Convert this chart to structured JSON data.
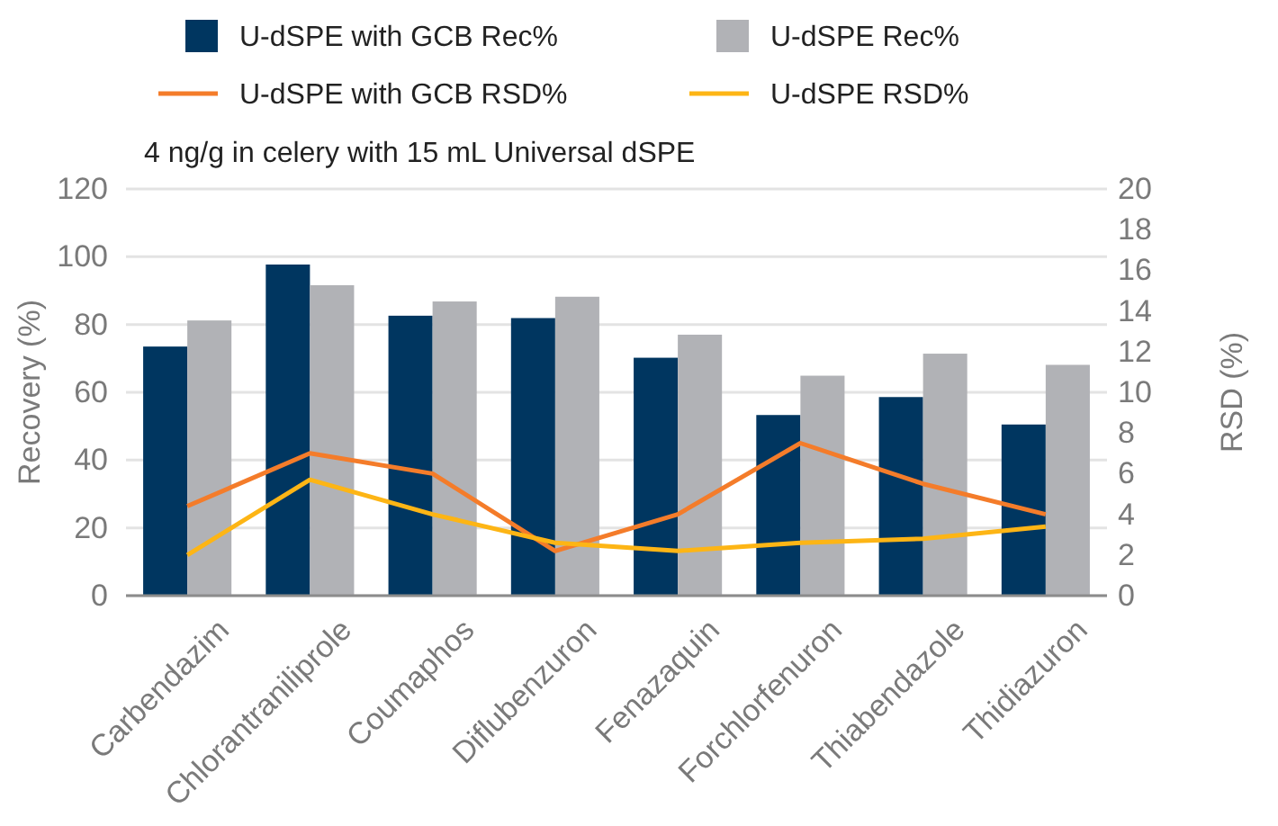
{
  "chart_data": {
    "type": "bar",
    "title": "4 ng/g in celery with 15 mL Universal dSPE",
    "ylabel": "Recovery (%)",
    "y2label": "RSD (%)",
    "categories": [
      "Carbendazim",
      "Chlorantraniliprole",
      "Coumaphos",
      "Diflubenzuron",
      "Fenazaquin",
      "Forchlorfenuron",
      "Thiabendazole",
      "Thidiazuron"
    ],
    "series": [
      {
        "name": "U-dSPE with GCB Rec%",
        "color": "#003660",
        "values": [
          73.5,
          97.7,
          82.6,
          81.9,
          70.2,
          53.3,
          58.6,
          50.5
        ]
      },
      {
        "name": "U-dSPE Rec%",
        "color": "#b1b2b6",
        "values": [
          81.2,
          91.6,
          86.8,
          88.2,
          77,
          64.9,
          71.4,
          68.1
        ]
      },
      {
        "name": "U-dSPE with GCB RSD%",
        "type": "line",
        "axis": "y2",
        "color": "#f47c2a",
        "values": [
          4.4,
          7.0,
          6.0,
          2.2,
          4.0,
          7.5,
          5.5,
          4.0
        ]
      },
      {
        "name": "U-dSPE RSD%",
        "type": "line",
        "axis": "y2",
        "color": "#fdb515",
        "values": [
          2.0,
          5.7,
          4.0,
          2.6,
          2.2,
          2.6,
          2.8,
          3.4
        ]
      }
    ],
    "ylim": [
      0,
      120
    ],
    "yticks": [
      0,
      20,
      40,
      60,
      80,
      100,
      120
    ],
    "y2lim": [
      0,
      20
    ],
    "y2ticks": [
      0,
      2,
      4,
      6,
      8,
      10,
      12,
      14,
      16,
      18,
      20
    ],
    "grid": "y",
    "legend": "top",
    "marker": "none",
    "line_style": "solid"
  }
}
